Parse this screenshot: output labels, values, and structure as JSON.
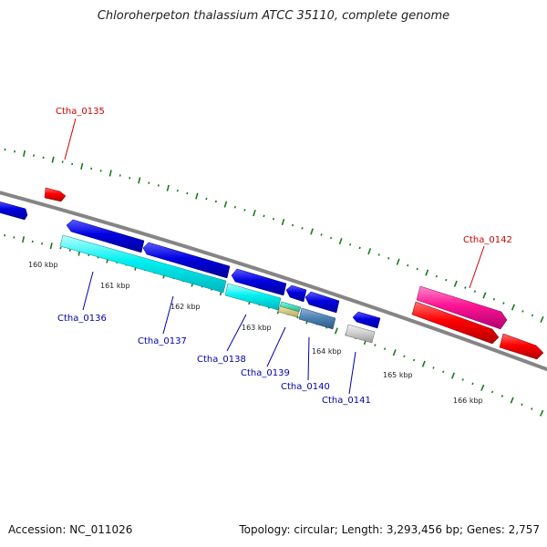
{
  "title": "Chloroherpeton thalassium ATCC 35110, complete genome",
  "footer": {
    "accession": "Accession: NC_011026",
    "summary": "Topology: circular; Length: 3,293,456 bp; Genes: 2,757"
  },
  "scale": {
    "labels": [
      "160 kbp",
      "161 kbp",
      "162 kbp",
      "163 kbp",
      "164 kbp",
      "165 kbp",
      "166 kbp"
    ]
  },
  "genes": [
    {
      "name": "Ctha_0135",
      "color": "#cc0000"
    },
    {
      "name": "Ctha_0136",
      "color": "#0000aa"
    },
    {
      "name": "Ctha_0137",
      "color": "#0000aa"
    },
    {
      "name": "Ctha_0138",
      "color": "#0000aa"
    },
    {
      "name": "Ctha_0139",
      "color": "#0000aa"
    },
    {
      "name": "Ctha_0140",
      "color": "#0000aa"
    },
    {
      "name": "Ctha_0141",
      "color": "#0000aa"
    },
    {
      "name": "Ctha_0142",
      "color": "#cc0000"
    }
  ]
}
